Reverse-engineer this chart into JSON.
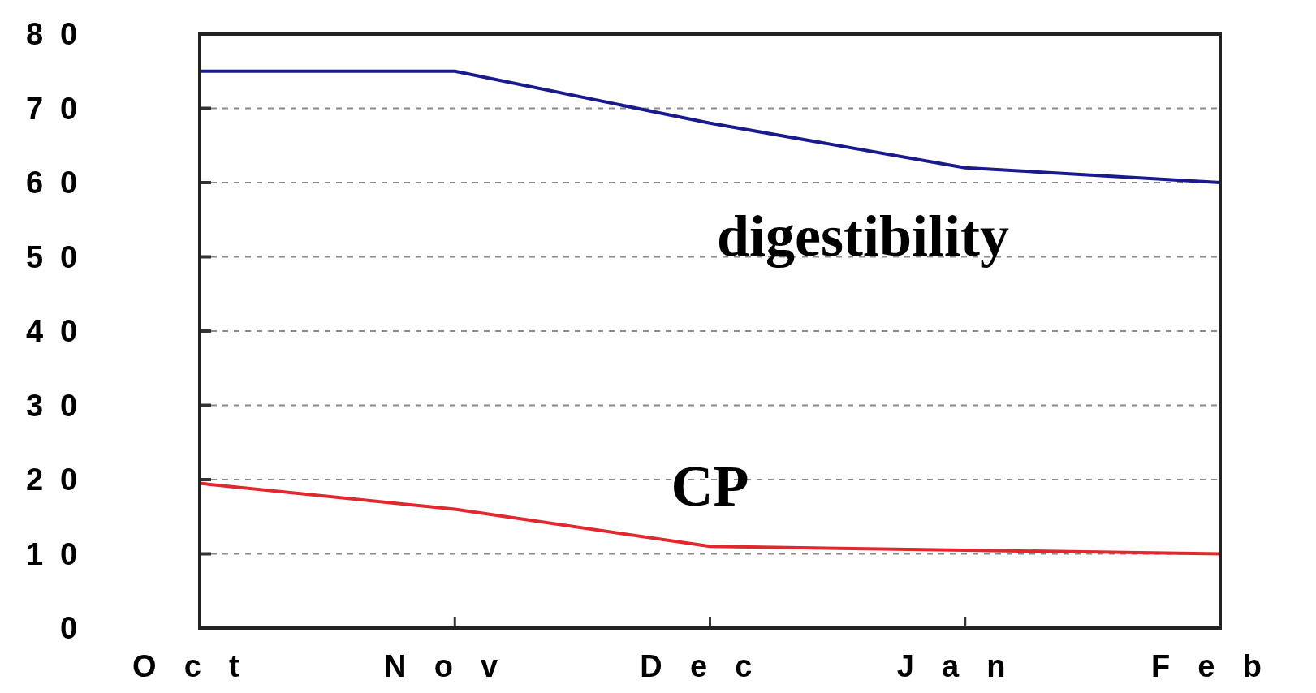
{
  "chart_data": {
    "type": "line",
    "categories": [
      "Oct",
      "Nov",
      "Dec",
      "Jan",
      "Feb"
    ],
    "series": [
      {
        "name": "digestibility",
        "color": "#1a1a8c",
        "values": [
          75,
          75,
          68,
          62,
          60
        ]
      },
      {
        "name": "CP",
        "color": "#e0282e",
        "values": [
          19.5,
          16,
          11,
          10.5,
          10
        ]
      }
    ],
    "ylim": [
      0,
      80
    ],
    "yticks": [
      0,
      10,
      20,
      30,
      40,
      50,
      60,
      70,
      80
    ],
    "grid": "y",
    "marker": "none",
    "line_style": "solid"
  }
}
